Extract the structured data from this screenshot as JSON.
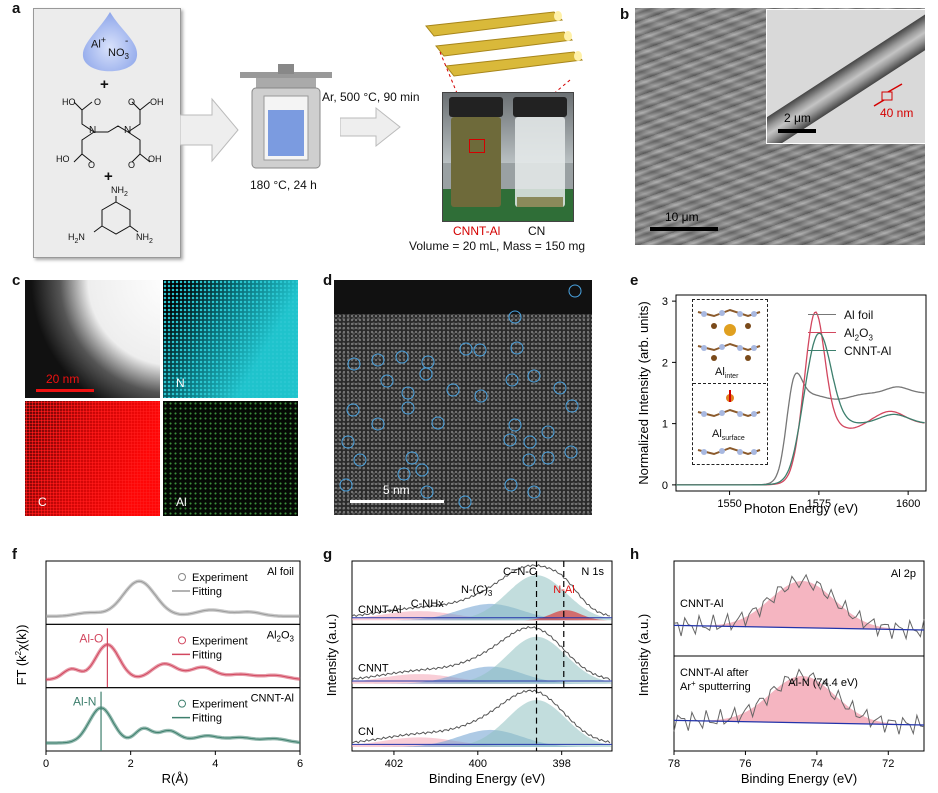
{
  "panels": {
    "a": "a",
    "b": "b",
    "c": "c",
    "d": "d",
    "e": "e",
    "f": "f",
    "g": "g",
    "h": "h"
  },
  "panel_a": {
    "ion_al": "Al",
    "ion_plus": "+",
    "ion_no3": "NO",
    "ion_no3_sub": "3",
    "ion_minus": "-",
    "plus1": "+",
    "plus2": "+",
    "acid_label": "HO",
    "o_label": "O",
    "oh_label": "OH",
    "n_label": "N",
    "melamine_nh2": "NH",
    "melamine_nh2_sub": "2",
    "melamine_h2n": "H",
    "melamine_h2n_b": "N",
    "autoclave_condition": "180 °C, 24 h",
    "furnace_condition": "Ar, 500 °C, 90 min",
    "sample1": "CNNT-Al",
    "sample2": "CN",
    "sample_info": "Volume = 20 mL, Mass = 150 mg"
  },
  "panel_b": {
    "scale_main": "10 μm",
    "scale_inset": "2 μm",
    "wall": "40 nm"
  },
  "panel_c": {
    "scale": "20 nm",
    "map_n": "N",
    "map_c": "C",
    "map_al": "Al"
  },
  "panel_d": {
    "scale": "5 nm"
  },
  "panel_e": {
    "ylabel": "Normalized Intensity (arb. units)",
    "xlabel": "Photon Energy (eV)",
    "inset_inter": "Al",
    "inset_inter_sub": "inter",
    "inset_surface": "Al",
    "inset_surface_sub": "surface",
    "legend": [
      {
        "name": "Al foil",
        "color": "#777777"
      },
      {
        "name": "Al",
        "sub": "2",
        "tail": "O",
        "sub2": "3",
        "color": "#d2475f"
      },
      {
        "name": "CNNT-Al",
        "color": "#3d7f6d"
      }
    ],
    "xticks": [
      "1550",
      "1575",
      "1600"
    ],
    "yticks": [
      "0",
      "1",
      "2",
      "3"
    ]
  },
  "panel_f": {
    "ylabel": "FT (k",
    "ylabel_tail": "χ(k))",
    "xlabel": "R(Å)",
    "xticks": [
      "0",
      "2",
      "4",
      "6"
    ],
    "sub1": {
      "tag": "Al foil",
      "exp": "Experiment",
      "fit": "Fitting"
    },
    "sub2": {
      "tag": "Al",
      "tag_sub": "2",
      "tag_mid": "O",
      "tag_sub2": "3",
      "bond": "Al-O",
      "exp": "Experiment",
      "fit": "Fitting"
    },
    "sub3": {
      "tag": "CNNT-Al",
      "bond": "Al-N",
      "exp": "Experiment",
      "fit": "Fitting"
    }
  },
  "panel_g": {
    "ylabel": "Intensity (a.u.)",
    "xlabel": "Binding Energy (eV)",
    "xticks": [
      "402",
      "400",
      "398"
    ],
    "title": "N 1s",
    "peak_cnnx": "C=N-C",
    "peak_nc3": "N-(C)",
    "peak_nc3_sub": "3",
    "peak_cnhx": "C-NHx",
    "peak_nal": "N-Al",
    "row1": "CNNT-Al",
    "row2": "CNNT",
    "row3": "CN"
  },
  "panel_h": {
    "ylabel": "Intensity (a.u.)",
    "xlabel": "Binding Energy (eV)",
    "xticks": [
      "78",
      "76",
      "74",
      "72"
    ],
    "title": "Al 2p",
    "row1": "CNNT-Al",
    "row2_a": "CNNT-Al after",
    "row2_b": "Ar",
    "row2_b_sup": "+",
    "row2_c": " sputterring",
    "peak": "Al-N (74.4 eV)"
  }
}
